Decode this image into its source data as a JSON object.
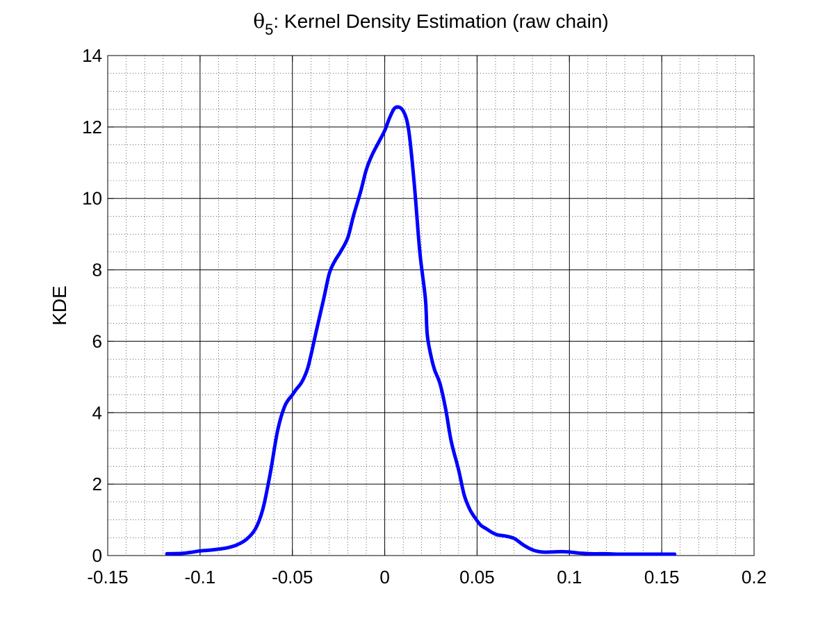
{
  "chart_data": {
    "type": "line",
    "title": {
      "symbol": "θ",
      "subscript": "5",
      "text": ": Kernel Density Estimation (raw chain)"
    },
    "xlabel": "",
    "ylabel": "KDE",
    "xlim": [
      -0.15,
      0.2
    ],
    "ylim": [
      0,
      14
    ],
    "xticks": [
      -0.15,
      -0.1,
      -0.05,
      0,
      0.05,
      0.1,
      0.15,
      0.2
    ],
    "xtick_labels": [
      "-0.15",
      "-0.1",
      "-0.05",
      "0",
      "0.05",
      "0.1",
      "0.15",
      "0.2"
    ],
    "yticks": [
      0,
      2,
      4,
      6,
      8,
      10,
      12,
      14
    ],
    "ytick_labels": [
      "0",
      "2",
      "4",
      "6",
      "8",
      "10",
      "12",
      "14"
    ],
    "grid": "major and minor",
    "line_color": "#0000ff",
    "series": [
      {
        "x": [
          -0.118,
          -0.11,
          -0.105,
          -0.1,
          -0.095,
          -0.09,
          -0.085,
          -0.08,
          -0.075,
          -0.07,
          -0.066,
          -0.062,
          -0.058,
          -0.054,
          -0.05,
          -0.048,
          -0.045,
          -0.042,
          -0.04,
          -0.037,
          -0.033,
          -0.03,
          -0.027,
          -0.024,
          -0.02,
          -0.017,
          -0.013,
          -0.01,
          -0.007,
          -0.003,
          0.0,
          0.003,
          0.006,
          0.01,
          0.013,
          0.016,
          0.019,
          0.022,
          0.023,
          0.025,
          0.027,
          0.03,
          0.033,
          0.036,
          0.04,
          0.043,
          0.046,
          0.049,
          0.052,
          0.055,
          0.058,
          0.061,
          0.065,
          0.07,
          0.075,
          0.08,
          0.085,
          0.09,
          0.095,
          0.1,
          0.105,
          0.108,
          0.112,
          0.116,
          0.12,
          0.125,
          0.13,
          0.135,
          0.14,
          0.145,
          0.15,
          0.157
        ],
        "y": [
          0.05,
          0.06,
          0.09,
          0.13,
          0.15,
          0.18,
          0.22,
          0.3,
          0.45,
          0.75,
          1.3,
          2.3,
          3.5,
          4.2,
          4.5,
          4.65,
          4.85,
          5.2,
          5.6,
          6.3,
          7.2,
          7.9,
          8.25,
          8.5,
          8.9,
          9.5,
          10.2,
          10.8,
          11.2,
          11.6,
          11.9,
          12.3,
          12.55,
          12.45,
          11.9,
          10.4,
          8.5,
          7.2,
          6.2,
          5.6,
          5.2,
          4.8,
          4.1,
          3.2,
          2.4,
          1.7,
          1.3,
          1.05,
          0.85,
          0.75,
          0.65,
          0.58,
          0.55,
          0.48,
          0.3,
          0.16,
          0.1,
          0.1,
          0.11,
          0.1,
          0.07,
          0.06,
          0.05,
          0.05,
          0.05,
          0.04,
          0.04,
          0.04,
          0.04,
          0.04,
          0.04,
          0.04
        ]
      }
    ]
  }
}
